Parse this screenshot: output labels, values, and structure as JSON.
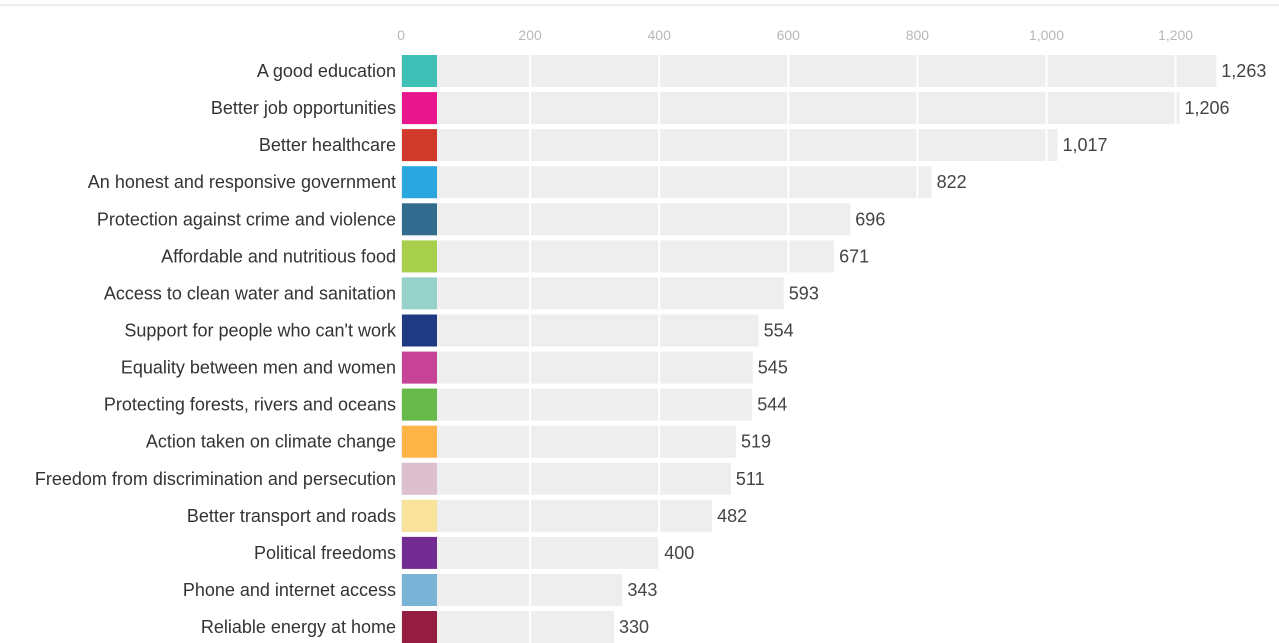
{
  "chart_data": {
    "type": "bar",
    "orientation": "horizontal",
    "title": "",
    "xlabel": "",
    "ylabel": "",
    "xlim": [
      0,
      1300
    ],
    "x_ticks": [
      0,
      200,
      400,
      600,
      800,
      1000,
      1200
    ],
    "x_tick_labels": [
      "0",
      "200",
      "400",
      "600",
      "800",
      "1,000",
      "1,200"
    ],
    "grid": true,
    "bar_color": "#eeeeee",
    "gridline_color": "#ffffff",
    "categories": [
      "A good education",
      "Better job opportunities",
      "Better healthcare",
      "An honest and responsive government",
      "Protection against crime and violence",
      "Affordable and nutritious food",
      "Access to clean water and sanitation",
      "Support for people who can't work",
      "Equality between men and women",
      "Protecting forests, rivers and oceans",
      "Action taken on climate change",
      "Freedom from discrimination and persecution",
      "Better transport and roads",
      "Political freedoms",
      "Phone and internet access",
      "Reliable energy at home"
    ],
    "values": [
      1263,
      1206,
      1017,
      822,
      696,
      671,
      593,
      554,
      545,
      544,
      519,
      511,
      482,
      400,
      343,
      330
    ],
    "value_labels": [
      "1,263",
      "1,206",
      "1,017",
      "822",
      "696",
      "671",
      "593",
      "554",
      "545",
      "544",
      "519",
      "511",
      "482",
      "400",
      "343",
      "330"
    ],
    "category_colors": [
      "#40bfb6",
      "#e8158c",
      "#cf3a2b",
      "#2aa7df",
      "#336b8f",
      "#a8cf4b",
      "#96d2c9",
      "#1f3a83",
      "#c74396",
      "#67b94a",
      "#fcb446",
      "#ddc0cd",
      "#f9e39a",
      "#722b91",
      "#7ab3d6",
      "#951d41"
    ]
  }
}
